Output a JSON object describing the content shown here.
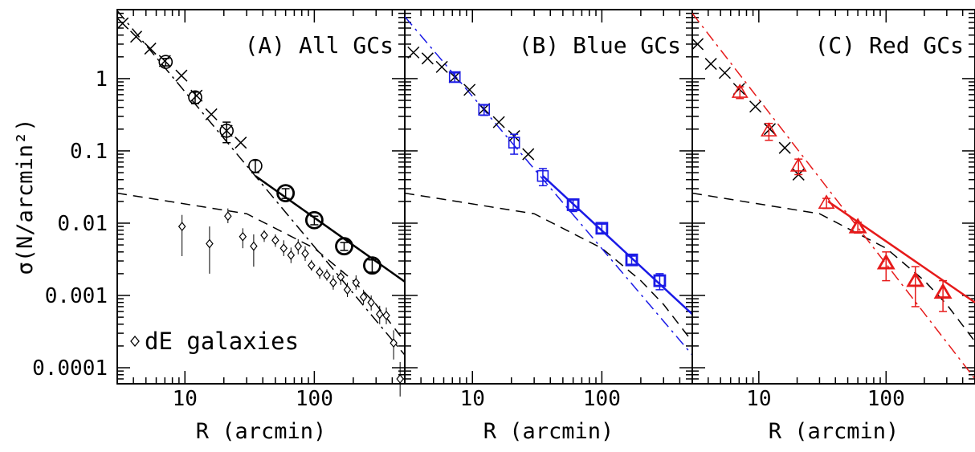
{
  "chart_data": {
    "type": "scatter",
    "ylabel": "σ(N/arcmin²)",
    "xlabel": "R (arcmin)",
    "xscale": "log",
    "yscale": "log",
    "xlim": [
      3,
      500
    ],
    "ylim": [
      6e-05,
      9
    ],
    "x_ticks": [
      10,
      100
    ],
    "x_tick_labels": [
      "10",
      "100"
    ],
    "y_ticks": [
      1,
      0.1,
      0.01,
      0.001,
      0.0001
    ],
    "y_tick_labels": [
      "1",
      "0.1",
      "0.01",
      "0.001",
      "0.0001"
    ],
    "colors": {
      "black": "#000000",
      "blue": "#1a1ae6",
      "red": "#e61a1a"
    },
    "legend": {
      "marker": "diamond",
      "label": "dE galaxies",
      "placement": "bottom-left"
    },
    "panels": [
      {
        "label": "(A) All GCs",
        "color": "#000000",
        "marker": "circle",
        "gc_points": [
          {
            "x": 7.1,
            "y": 1.7,
            "err": 0.2
          },
          {
            "x": 12,
            "y": 0.55,
            "err": 0.1
          },
          {
            "x": 21,
            "y": 0.19,
            "err": 0.06
          },
          {
            "x": 35,
            "y": 0.062,
            "err": 0.012
          },
          {
            "x": 60,
            "y": 0.026,
            "err": 0.004
          },
          {
            "x": 100,
            "y": 0.011,
            "err": 0.0015
          },
          {
            "x": 170,
            "y": 0.0048,
            "err": 0.0006
          },
          {
            "x": 280,
            "y": 0.0026,
            "err": 0.0005
          }
        ],
        "cross_points": [
          [
            3.3,
            5.8
          ],
          [
            4.2,
            3.8
          ],
          [
            5.4,
            2.6
          ],
          [
            7.0,
            1.75
          ],
          [
            9.4,
            1.1
          ],
          [
            12.3,
            0.58
          ],
          [
            16.0,
            0.32
          ],
          [
            21,
            0.19
          ],
          [
            27,
            0.13
          ]
        ],
        "dE_points": [
          {
            "x": 9.5,
            "y": 0.009,
            "lo": 0.0035,
            "hi": 0.013
          },
          {
            "x": 15.5,
            "y": 0.0052,
            "lo": 0.002,
            "hi": 0.009
          },
          {
            "x": 21.5,
            "y": 0.0125,
            "lo": 0.01,
            "hi": 0.016
          },
          {
            "x": 28,
            "y": 0.0065,
            "lo": 0.0045,
            "hi": 0.0085
          },
          {
            "x": 34,
            "y": 0.0048,
            "lo": 0.0025,
            "hi": 0.007
          },
          {
            "x": 41,
            "y": 0.0068,
            "lo": 0.0055,
            "hi": 0.008
          },
          {
            "x": 50,
            "y": 0.0058,
            "lo": 0.0047,
            "hi": 0.007
          },
          {
            "x": 58,
            "y": 0.0045,
            "lo": 0.0035,
            "hi": 0.0058
          },
          {
            "x": 66,
            "y": 0.0036,
            "lo": 0.0028,
            "hi": 0.0046
          },
          {
            "x": 75,
            "y": 0.0048,
            "lo": 0.0037,
            "hi": 0.006
          },
          {
            "x": 85,
            "y": 0.0038,
            "lo": 0.003,
            "hi": 0.0048
          },
          {
            "x": 95,
            "y": 0.0026,
            "lo": 0.0022,
            "hi": 0.0031
          },
          {
            "x": 110,
            "y": 0.0021,
            "lo": 0.0017,
            "hi": 0.0025
          },
          {
            "x": 125,
            "y": 0.0019,
            "lo": 0.0016,
            "hi": 0.0023
          },
          {
            "x": 140,
            "y": 0.0015,
            "lo": 0.0012,
            "hi": 0.0019
          },
          {
            "x": 160,
            "y": 0.0018,
            "lo": 0.0014,
            "hi": 0.0022
          },
          {
            "x": 180,
            "y": 0.0012,
            "lo": 0.00095,
            "hi": 0.0015
          },
          {
            "x": 210,
            "y": 0.0015,
            "lo": 0.0012,
            "hi": 0.0019
          },
          {
            "x": 240,
            "y": 0.00095,
            "lo": 0.00075,
            "hi": 0.0012
          },
          {
            "x": 275,
            "y": 0.0008,
            "lo": 0.00062,
            "hi": 0.001
          },
          {
            "x": 320,
            "y": 0.00055,
            "lo": 0.0004,
            "hi": 0.00072
          },
          {
            "x": 360,
            "y": 0.00053,
            "lo": 0.0004,
            "hi": 0.00068
          },
          {
            "x": 410,
            "y": 0.00022,
            "lo": 0.00013,
            "hi": 0.00033
          },
          {
            "x": 460,
            "y": 7e-05,
            "lo": 4e-05,
            "hi": 0.00012
          }
        ],
        "solid_fit": {
          "x": [
            35,
            500
          ],
          "y": [
            0.045,
            0.00155
          ]
        },
        "dashdot_fit": {
          "x": [
            3,
            500
          ],
          "y": [
            8.7,
            0.00015
          ]
        },
        "dashed_fit": {
          "x": [
            3,
            30,
            100,
            200,
            300,
            500
          ],
          "y": [
            0.026,
            0.0135,
            0.0045,
            0.0016,
            0.00075,
            0.00023
          ]
        }
      },
      {
        "label": "(B) Blue GCs",
        "color": "#1a1ae6",
        "marker": "square",
        "gc_points": [
          {
            "x": 7.3,
            "y": 1.05,
            "err": 0.15
          },
          {
            "x": 12.3,
            "y": 0.37,
            "err": 0.06
          },
          {
            "x": 21,
            "y": 0.13,
            "err": 0.04
          },
          {
            "x": 35,
            "y": 0.045,
            "err": 0.012
          },
          {
            "x": 60,
            "y": 0.018,
            "err": 0.0035
          },
          {
            "x": 100,
            "y": 0.0085,
            "err": 0.0012
          },
          {
            "x": 170,
            "y": 0.0031,
            "err": 0.0004
          },
          {
            "x": 280,
            "y": 0.0016,
            "err": 0.0004
          }
        ],
        "cross_points": [
          [
            3.5,
            2.3
          ],
          [
            4.5,
            1.9
          ],
          [
            5.8,
            1.45
          ],
          [
            7.3,
            1.05
          ],
          [
            9.5,
            0.7
          ],
          [
            12.3,
            0.38
          ],
          [
            16.0,
            0.25
          ],
          [
            21,
            0.16
          ],
          [
            27,
            0.09
          ]
        ],
        "solid_fit": {
          "x": [
            35,
            500
          ],
          "y": [
            0.045,
            0.00055
          ]
        },
        "dashdot_fit": {
          "x": [
            3,
            500
          ],
          "y": [
            7.2,
            0.00015
          ]
        },
        "dashed_fit": {
          "x": [
            3,
            30,
            100,
            200,
            300,
            500
          ],
          "y": [
            0.026,
            0.0135,
            0.0045,
            0.0016,
            0.00075,
            0.00023
          ]
        }
      },
      {
        "label": "(C) Red GCs",
        "color": "#e61a1a",
        "marker": "triangle",
        "gc_points": [
          {
            "x": 7.1,
            "y": 0.65,
            "err": 0.12
          },
          {
            "x": 12,
            "y": 0.19,
            "err": 0.05
          },
          {
            "x": 20.5,
            "y": 0.062,
            "err": 0.015
          },
          {
            "x": 34,
            "y": 0.019,
            "err": 0.003
          },
          {
            "x": 60,
            "y": 0.0088,
            "err": 0.0015
          },
          {
            "x": 100,
            "y": 0.0028,
            "err": 0.0012
          },
          {
            "x": 170,
            "y": 0.0016,
            "err": 0.0009
          },
          {
            "x": 280,
            "y": 0.0011,
            "err": 0.0005
          }
        ],
        "cross_points": [
          [
            3.3,
            3.0
          ],
          [
            4.2,
            1.6
          ],
          [
            5.4,
            1.2
          ],
          [
            7.0,
            0.72
          ],
          [
            9.4,
            0.41
          ],
          [
            12.2,
            0.2
          ],
          [
            16.0,
            0.11
          ],
          [
            20.5,
            0.047
          ]
        ],
        "solid_fit": {
          "x": [
            35,
            500
          ],
          "y": [
            0.02,
            0.0008
          ]
        },
        "dashdot_fit": {
          "x": [
            3,
            500
          ],
          "y": [
            8.0,
            7e-05
          ]
        },
        "dashed_fit": {
          "x": [
            3,
            30,
            100,
            200,
            300,
            500
          ],
          "y": [
            0.026,
            0.0135,
            0.0045,
            0.0016,
            0.00075,
            0.00023
          ]
        }
      }
    ]
  }
}
